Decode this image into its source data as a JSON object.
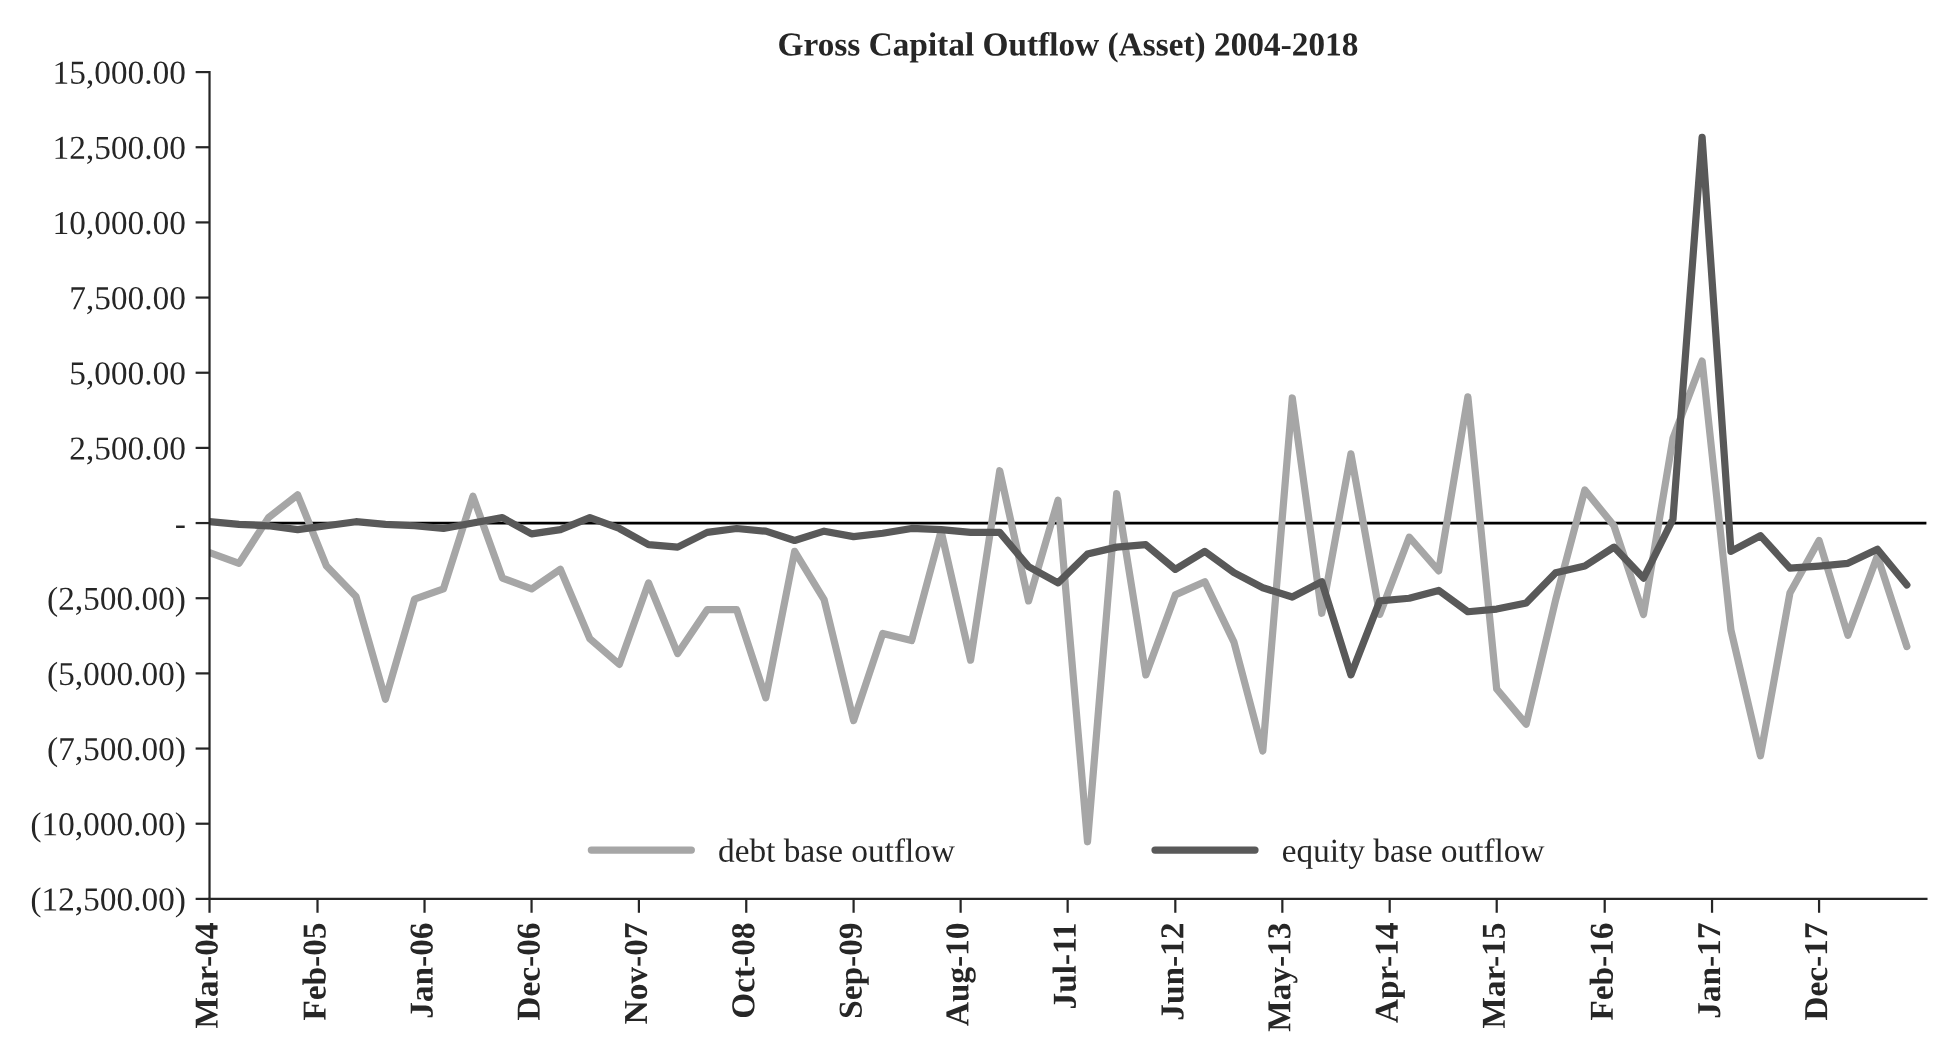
{
  "chart_data": {
    "type": "line",
    "title": "Gross Capital Outflow (Asset) 2004-2018",
    "x": [
      "2004-03",
      "2004-06",
      "2004-09",
      "2004-12",
      "2005-03",
      "2005-06",
      "2005-09",
      "2005-12",
      "2006-03",
      "2006-06",
      "2006-09",
      "2006-12",
      "2007-03",
      "2007-06",
      "2007-09",
      "2007-12",
      "2008-03",
      "2008-06",
      "2008-09",
      "2008-12",
      "2009-03",
      "2009-06",
      "2009-09",
      "2009-12",
      "2010-03",
      "2010-06",
      "2010-09",
      "2010-12",
      "2011-03",
      "2011-06",
      "2011-09",
      "2011-12",
      "2012-03",
      "2012-06",
      "2012-09",
      "2012-12",
      "2013-03",
      "2013-06",
      "2013-09",
      "2013-12",
      "2014-03",
      "2014-06",
      "2014-09",
      "2014-12",
      "2015-03",
      "2015-06",
      "2015-09",
      "2015-12",
      "2016-03",
      "2016-06",
      "2016-09",
      "2016-12",
      "2017-03",
      "2017-06",
      "2017-09",
      "2017-12",
      "2018-03",
      "2018-06",
      "2018-09"
    ],
    "series": [
      {
        "name": "debt base outflow",
        "color": "#a6a6a6",
        "values": [
          -985,
          -1340,
          180,
          940,
          -1430,
          -2440,
          -5860,
          -2530,
          -2190,
          890,
          -1830,
          -2190,
          -1540,
          -3850,
          -4700,
          -1990,
          -4340,
          -2880,
          -2880,
          -5810,
          -940,
          -2550,
          -6570,
          -3670,
          -3910,
          -270,
          -4560,
          1740,
          -2590,
          760,
          -10600,
          980,
          -5050,
          -2390,
          -1950,
          -3960,
          -7580,
          4160,
          -3000,
          2300,
          -3040,
          -470,
          -1590,
          4200,
          -5520,
          -6690,
          -2550,
          1100,
          -90,
          -3040,
          2820,
          5390,
          -3560,
          -7740,
          -2330,
          -580,
          -3730,
          -1100,
          -4110
        ]
      },
      {
        "name": "equity base outflow",
        "color": "#595959",
        "values": [
          45,
          -45,
          -90,
          -220,
          -90,
          45,
          -45,
          -90,
          -180,
          0,
          180,
          -360,
          -220,
          180,
          -180,
          -720,
          -800,
          -310,
          -180,
          -270,
          -580,
          -270,
          -450,
          -340,
          -180,
          -220,
          -310,
          -310,
          -1450,
          -1990,
          -1030,
          -800,
          -720,
          -1540,
          -940,
          -1650,
          -2150,
          -2460,
          -1950,
          -5050,
          -2590,
          -2500,
          -2240,
          -2950,
          -2860,
          -2660,
          -1650,
          -1430,
          -800,
          -1830,
          130,
          12830,
          -940,
          -420,
          -1500,
          -1430,
          -1340,
          -870,
          -2060
        ]
      }
    ],
    "xlim": [
      "2004-03",
      "2018-11"
    ],
    "xticks": [
      {
        "value": "2004-03",
        "label": "Mar-04"
      },
      {
        "value": "2005-02",
        "label": "Feb-05"
      },
      {
        "value": "2006-01",
        "label": "Jan-06"
      },
      {
        "value": "2006-12",
        "label": "Dec-06"
      },
      {
        "value": "2007-11",
        "label": "Nov-07"
      },
      {
        "value": "2008-10",
        "label": "Oct-08"
      },
      {
        "value": "2009-09",
        "label": "Sep-09"
      },
      {
        "value": "2010-08",
        "label": "Aug-10"
      },
      {
        "value": "2011-07",
        "label": "Jul-11"
      },
      {
        "value": "2012-06",
        "label": "Jun-12"
      },
      {
        "value": "2013-05",
        "label": "May-13"
      },
      {
        "value": "2014-04",
        "label": "Apr-14"
      },
      {
        "value": "2015-03",
        "label": "Mar-15"
      },
      {
        "value": "2016-02",
        "label": "Feb-16"
      },
      {
        "value": "2017-01",
        "label": "Jan-17"
      },
      {
        "value": "2017-12",
        "label": "Dec-17"
      }
    ],
    "ylim": [
      -12500,
      15000
    ],
    "yticks": [
      {
        "value": -12500,
        "label": "(12,500.00)"
      },
      {
        "value": -10000,
        "label": "(10,000.00)"
      },
      {
        "value": -7500,
        "label": "(7,500.00)"
      },
      {
        "value": -5000,
        "label": "(5,000.00)"
      },
      {
        "value": -2500,
        "label": "(2,500.00)"
      },
      {
        "value": 0,
        "label": "-"
      },
      {
        "value": 2500,
        "label": "2,500.00"
      },
      {
        "value": 5000,
        "label": "5,000.00"
      },
      {
        "value": 7500,
        "label": "7,500.00"
      },
      {
        "value": 10000,
        "label": "10,000.00"
      },
      {
        "value": 12500,
        "label": "12,500.00"
      },
      {
        "value": 15000,
        "label": "15,000.00"
      }
    ],
    "ref_lines": [
      {
        "axis": "y",
        "value": 0,
        "color": "#000000",
        "line_style": "solid"
      }
    ],
    "grid": false,
    "legend": "bottom",
    "marker": "none",
    "line_style": "solid"
  }
}
